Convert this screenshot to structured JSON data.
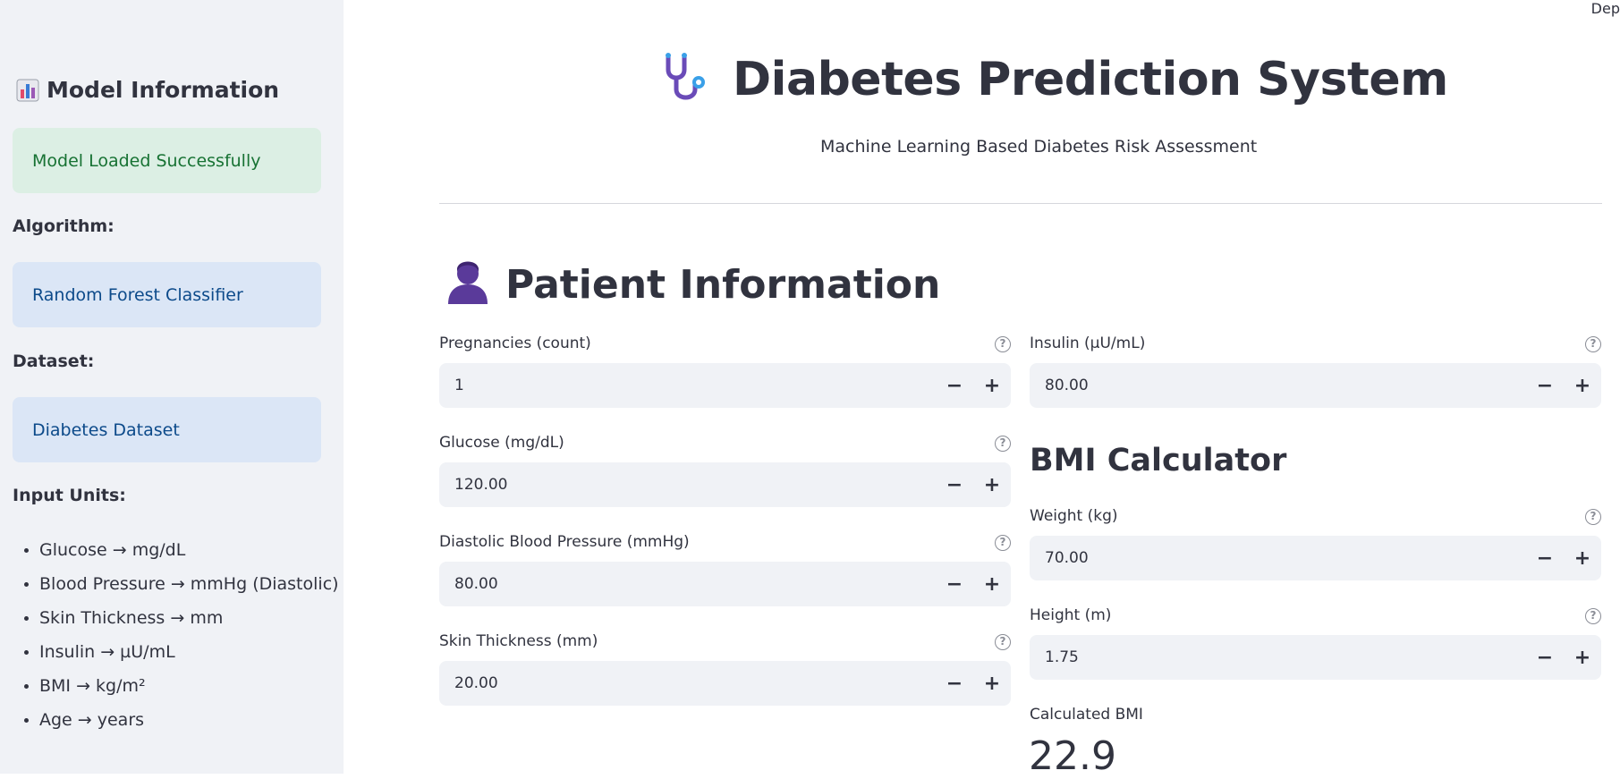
{
  "top_right_text": "Dep",
  "sidebar": {
    "heading": "Model Information",
    "status": "Model Loaded Successfully",
    "algorithm_label": "Algorithm:",
    "algorithm": "Random Forest Classifier",
    "dataset_label": "Dataset:",
    "dataset": "Diabetes Dataset",
    "units_label": "Input Units:",
    "units": [
      "Glucose → mg/dL",
      "Blood Pressure → mmHg (Diastolic)",
      "Skin Thickness → mm",
      "Insulin → µU/mL",
      "BMI → kg/m²",
      "Age → years"
    ]
  },
  "header": {
    "title": "Diabetes Prediction System",
    "subtitle": "Machine Learning Based Diabetes Risk Assessment"
  },
  "patient": {
    "title": "Patient Information",
    "fields": {
      "pregnancies": {
        "label": "Pregnancies (count)",
        "value": "1"
      },
      "glucose": {
        "label": "Glucose (mg/dL)",
        "value": "120.00"
      },
      "blood_pressure": {
        "label": "Diastolic Blood Pressure (mmHg)",
        "value": "80.00"
      },
      "skin": {
        "label": "Skin Thickness (mm)",
        "value": "20.00"
      },
      "insulin": {
        "label": "Insulin (µU/mL)",
        "value": "80.00"
      },
      "weight": {
        "label": "Weight (kg)",
        "value": "70.00"
      },
      "height": {
        "label": "Height (m)",
        "value": "1.75"
      }
    }
  },
  "bmi": {
    "title": "BMI Calculator",
    "calc_label": "Calculated BMI",
    "calc_value": "22.9"
  },
  "controls": {
    "minus": "−",
    "plus": "+",
    "help": "?"
  },
  "colors": {
    "success_bg": "#dcefe4",
    "success_text": "#177233",
    "info_bg": "#dbe6f6",
    "info_text": "#0c4a8a",
    "sidebar_bg": "#f0f2f6"
  }
}
